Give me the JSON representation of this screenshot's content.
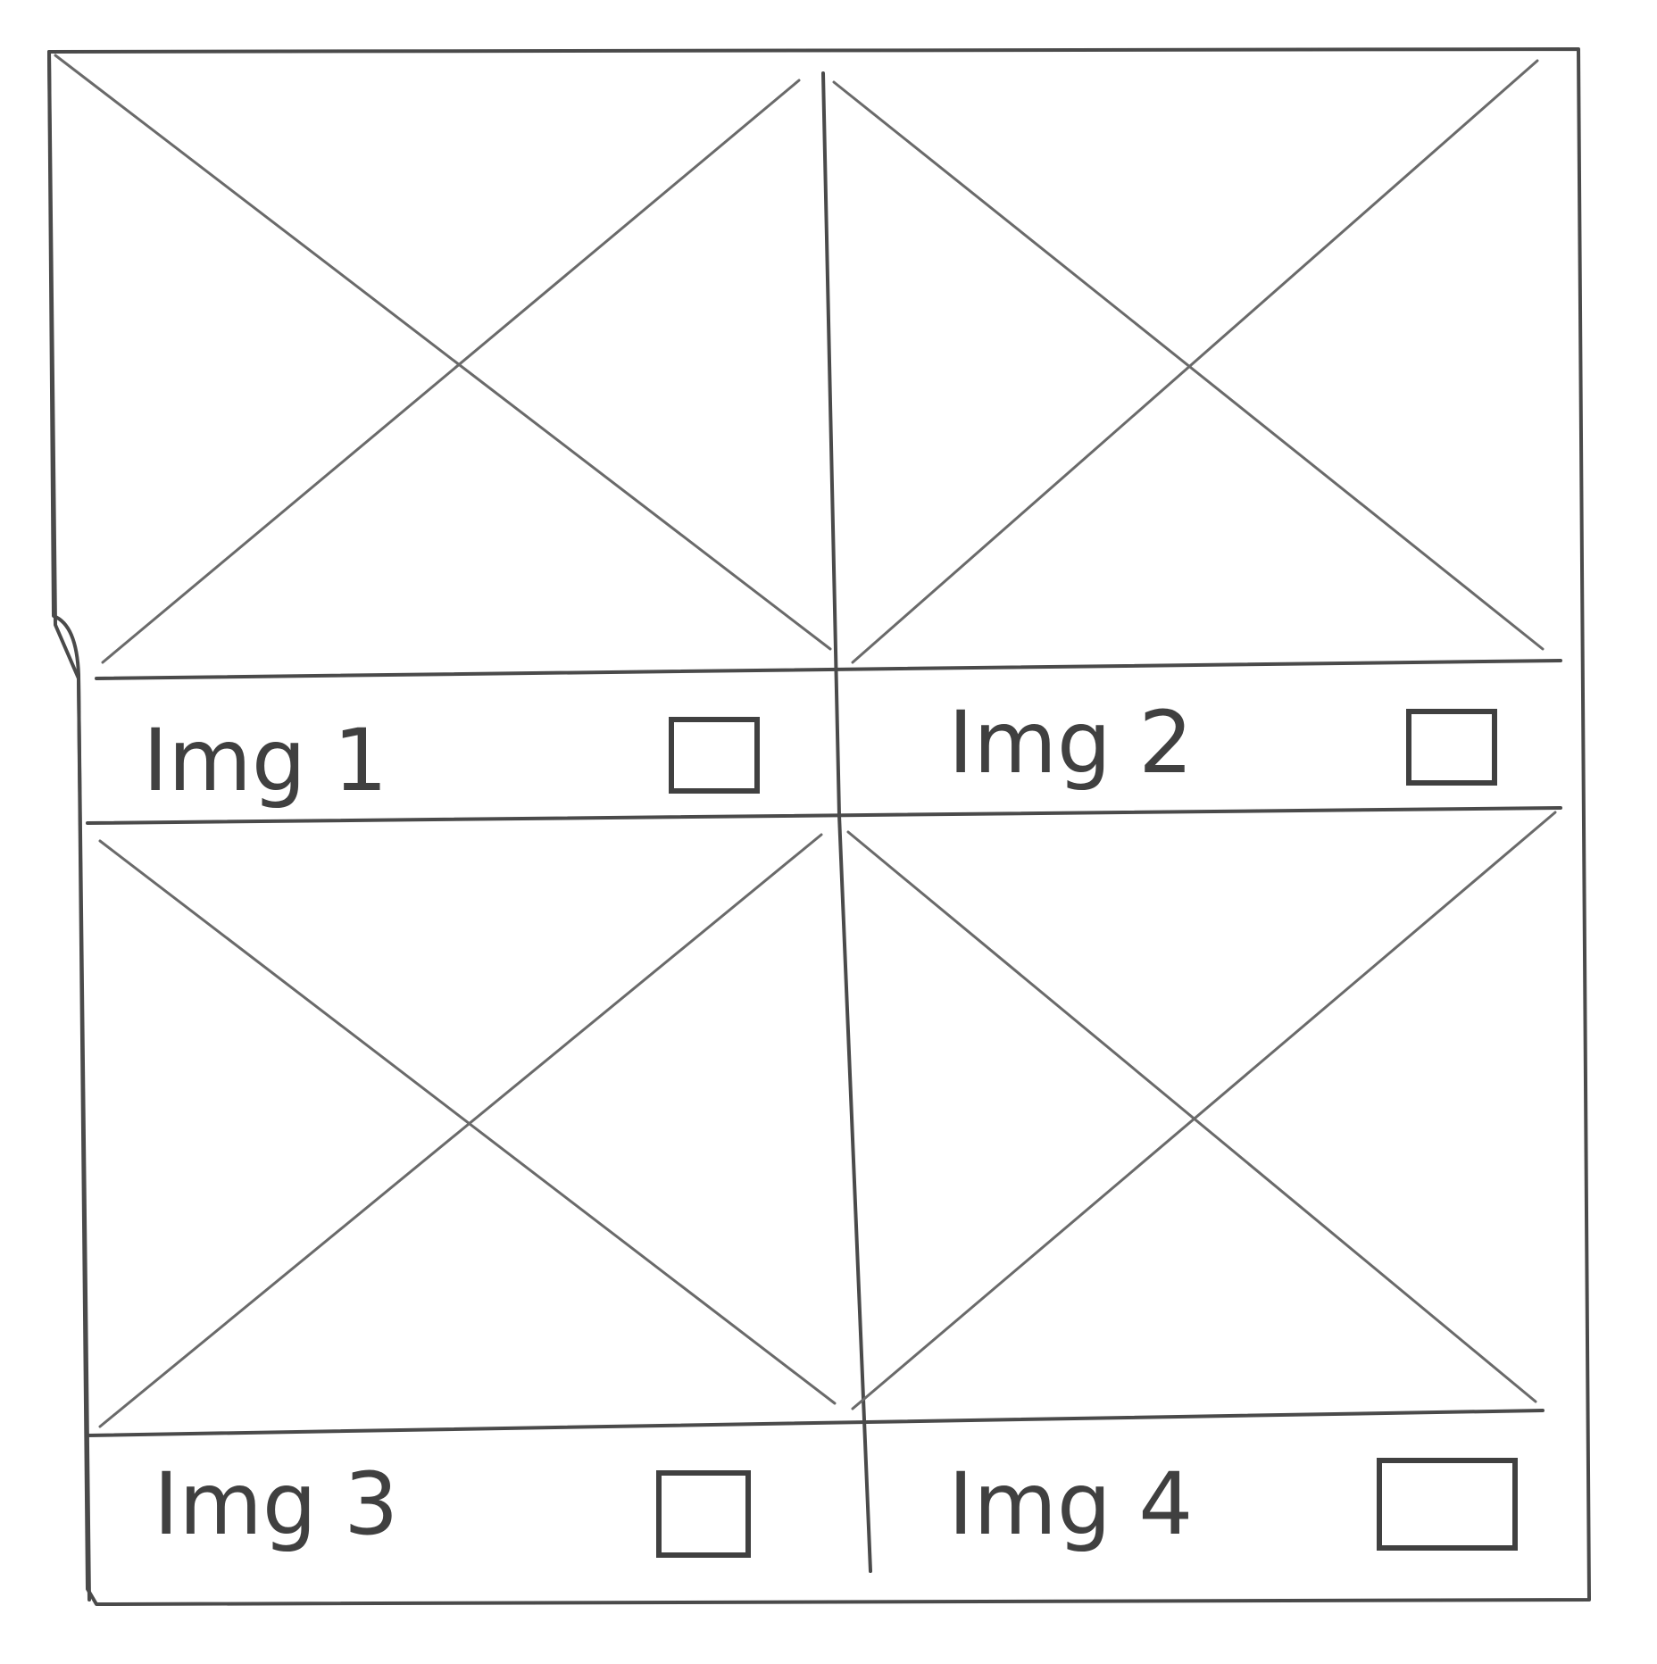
{
  "gallery": {
    "items": [
      {
        "label": "Img 1",
        "checked": false
      },
      {
        "label": "Img 2",
        "checked": false
      },
      {
        "label": "Img 3",
        "checked": false
      },
      {
        "label": "Img 4",
        "checked": false
      }
    ]
  },
  "colors": {
    "ink": "#4a4a4a",
    "background": "#ffffff"
  }
}
